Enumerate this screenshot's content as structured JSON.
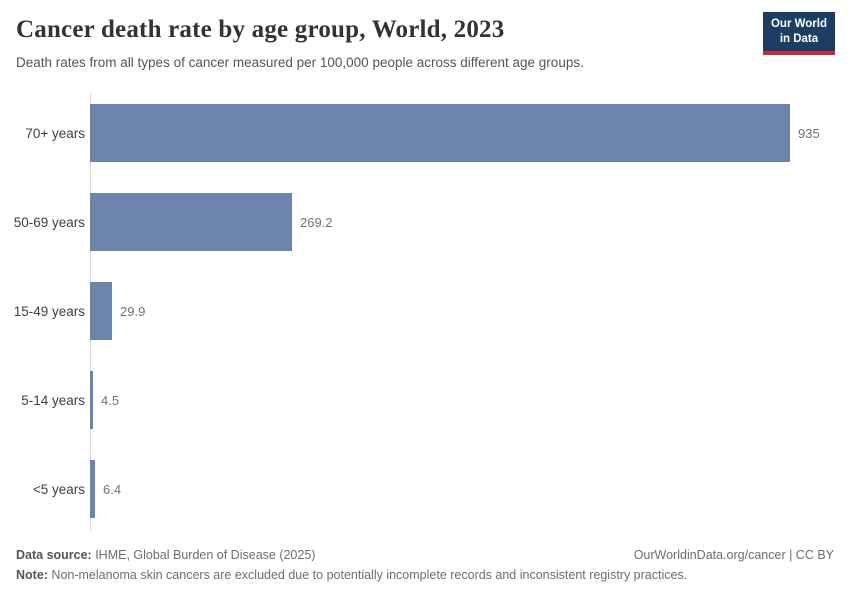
{
  "header": {
    "title": "Cancer death rate by age group, World, 2023",
    "subtitle": "Death rates from all types of cancer measured per 100,000 people across different age groups.",
    "logo": {
      "line1": "Our World",
      "line2": "in Data"
    }
  },
  "chart_data": {
    "type": "bar",
    "orientation": "horizontal",
    "title": "Cancer death rate by age group, World, 2023",
    "categories": [
      "70+ years",
      "50-69 years",
      "15-49 years",
      "5-14 years",
      "<5 years"
    ],
    "values": [
      935,
      269.2,
      29.9,
      4.5,
      6.4
    ],
    "value_labels": [
      "935",
      "269.2",
      "29.9",
      "4.5",
      "6.4"
    ],
    "xlabel": "",
    "ylabel": "",
    "xlim": [
      0,
      935
    ],
    "grid": false,
    "legend": "none",
    "bar_color": "#6d85ac"
  },
  "footer": {
    "datasource_label": "Data source:",
    "datasource_text": " IHME, Global Burden of Disease (2025)",
    "link_text": "OurWorldinData.org/cancer | CC BY",
    "note_label": "Note:",
    "note_text": " Non-melanoma skin cancers are excluded due to potentially incomplete records and inconsistent registry practices."
  },
  "colors": {
    "bar": "#6d85ac",
    "axis_line": "#dcdcdc",
    "logo_bg": "#1d3d63",
    "logo_red": "#c82a36"
  }
}
